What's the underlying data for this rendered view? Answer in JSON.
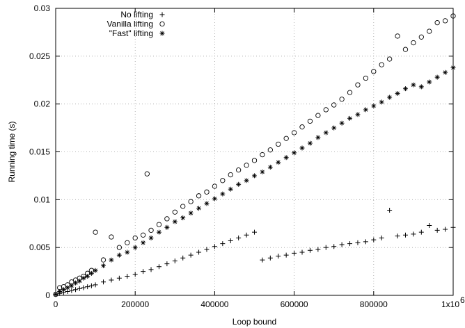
{
  "chart_data": {
    "type": "scatter",
    "title": "",
    "xlabel": "Loop bound",
    "ylabel": "Running time (s)",
    "xlim": [
      0,
      1000000
    ],
    "ylim": [
      0,
      0.03
    ],
    "grid": true,
    "legend_position": "top-left",
    "x_ticks": [
      {
        "value": 0,
        "label": "0"
      },
      {
        "value": 200000,
        "label": "200000"
      },
      {
        "value": 400000,
        "label": "400000"
      },
      {
        "value": 600000,
        "label": "600000"
      },
      {
        "value": 800000,
        "label": "800000"
      },
      {
        "value": 1000000,
        "label": "1x10"
      }
    ],
    "x_tick_exponent": "6",
    "y_ticks": [
      {
        "value": 0,
        "label": "0"
      },
      {
        "value": 0.005,
        "label": "0.005"
      },
      {
        "value": 0.01,
        "label": "0.01"
      },
      {
        "value": 0.015,
        "label": "0.015"
      },
      {
        "value": 0.02,
        "label": "0.02"
      },
      {
        "value": 0.025,
        "label": "0.025"
      },
      {
        "value": 0.03,
        "label": "0.03"
      }
    ],
    "series": [
      {
        "name": "No lifting",
        "marker": "plus",
        "x": [
          0,
          10000,
          20000,
          30000,
          40000,
          50000,
          60000,
          70000,
          80000,
          90000,
          100000,
          120000,
          140000,
          160000,
          180000,
          200000,
          220000,
          240000,
          260000,
          280000,
          300000,
          320000,
          340000,
          360000,
          380000,
          400000,
          420000,
          440000,
          460000,
          480000,
          500000,
          520000,
          540000,
          560000,
          580000,
          600000,
          620000,
          640000,
          660000,
          680000,
          700000,
          720000,
          740000,
          760000,
          780000,
          800000,
          820000,
          840000,
          860000,
          880000,
          900000,
          920000,
          940000,
          960000,
          980000,
          1000000
        ],
        "y": [
          0.0001,
          0.0002,
          0.0003,
          0.0004,
          0.0005,
          0.0006,
          0.0007,
          0.0008,
          0.0009,
          0.001,
          0.0011,
          0.0014,
          0.0016,
          0.0018,
          0.002,
          0.0022,
          0.0025,
          0.0027,
          0.003,
          0.0033,
          0.0036,
          0.0039,
          0.0042,
          0.0045,
          0.0048,
          0.0051,
          0.0054,
          0.0057,
          0.006,
          0.0063,
          0.0066,
          0.0037,
          0.0039,
          0.0041,
          0.0042,
          0.0044,
          0.0045,
          0.0047,
          0.0048,
          0.005,
          0.0051,
          0.0053,
          0.0054,
          0.0055,
          0.0056,
          0.0058,
          0.006,
          0.0089,
          0.0062,
          0.0063,
          0.0064,
          0.0066,
          0.0073,
          0.0068,
          0.0069,
          0.0071
        ]
      },
      {
        "name": "Vanilla lifting",
        "marker": "circle",
        "x": [
          0,
          10000,
          20000,
          30000,
          40000,
          50000,
          60000,
          70000,
          80000,
          90000,
          100000,
          120000,
          140000,
          160000,
          180000,
          200000,
          220000,
          230000,
          240000,
          260000,
          280000,
          300000,
          320000,
          340000,
          360000,
          380000,
          400000,
          420000,
          440000,
          460000,
          480000,
          500000,
          520000,
          540000,
          560000,
          580000,
          600000,
          620000,
          640000,
          660000,
          680000,
          700000,
          720000,
          740000,
          760000,
          780000,
          800000,
          820000,
          840000,
          860000,
          880000,
          900000,
          920000,
          940000,
          960000,
          980000,
          1000000
        ],
        "y": [
          0.0001,
          0.0008,
          0.0009,
          0.0011,
          0.0014,
          0.0016,
          0.0018,
          0.002,
          0.0023,
          0.0026,
          0.0066,
          0.0037,
          0.0061,
          0.005,
          0.0055,
          0.006,
          0.0063,
          0.0127,
          0.0068,
          0.0074,
          0.008,
          0.0087,
          0.0093,
          0.0098,
          0.0104,
          0.0108,
          0.0114,
          0.012,
          0.0126,
          0.0131,
          0.0136,
          0.0141,
          0.0147,
          0.0152,
          0.0158,
          0.0164,
          0.017,
          0.0176,
          0.0182,
          0.0188,
          0.0194,
          0.0199,
          0.0205,
          0.0212,
          0.022,
          0.0227,
          0.0234,
          0.0241,
          0.0247,
          0.0271,
          0.0257,
          0.0264,
          0.027,
          0.0276,
          0.0285,
          0.0287,
          0.0292
        ]
      },
      {
        "name": "\"Fast\" lifting",
        "marker": "star",
        "x": [
          0,
          10000,
          20000,
          30000,
          40000,
          50000,
          60000,
          70000,
          80000,
          90000,
          100000,
          120000,
          140000,
          160000,
          180000,
          200000,
          220000,
          240000,
          260000,
          280000,
          300000,
          320000,
          340000,
          360000,
          380000,
          400000,
          420000,
          440000,
          460000,
          480000,
          500000,
          520000,
          540000,
          560000,
          580000,
          600000,
          620000,
          640000,
          660000,
          680000,
          700000,
          720000,
          740000,
          760000,
          780000,
          800000,
          820000,
          840000,
          860000,
          880000,
          900000,
          920000,
          940000,
          960000,
          980000,
          1000000
        ],
        "y": [
          0.0001,
          0.0004,
          0.0006,
          0.0008,
          0.001,
          0.0013,
          0.0015,
          0.0018,
          0.002,
          0.0023,
          0.0026,
          0.0031,
          0.0037,
          0.0042,
          0.0045,
          0.005,
          0.0055,
          0.006,
          0.0066,
          0.0071,
          0.0077,
          0.0081,
          0.0086,
          0.0091,
          0.0096,
          0.0101,
          0.0106,
          0.0111,
          0.0116,
          0.012,
          0.0125,
          0.0129,
          0.0134,
          0.0139,
          0.0144,
          0.0149,
          0.0154,
          0.0159,
          0.0165,
          0.017,
          0.0175,
          0.018,
          0.0185,
          0.0189,
          0.0194,
          0.0198,
          0.0202,
          0.0207,
          0.0211,
          0.0216,
          0.022,
          0.0218,
          0.0223,
          0.0228,
          0.0233,
          0.0238
        ]
      }
    ]
  }
}
